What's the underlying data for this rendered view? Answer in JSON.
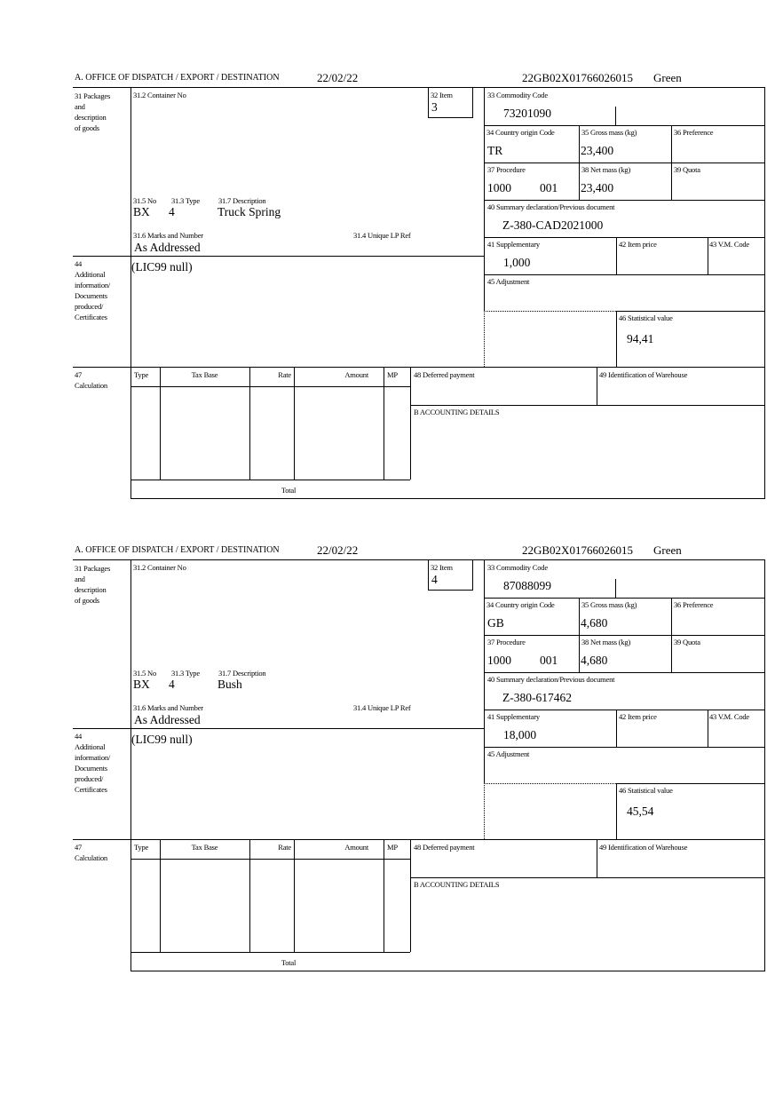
{
  "labels": {
    "office": "A.  OFFICE OF DISPATCH / EXPORT / DESTINATION",
    "box31": [
      "31 Packages",
      "and",
      "description",
      "of goods"
    ],
    "container_no": "31.2 Container No",
    "item": "32 Item",
    "commodity_code": "33 Commodity Code",
    "country_origin": "34 Country origin Code",
    "gross_mass": "35 Gross mass (kg)",
    "preference": "36 Preference",
    "procedure": "37 Procedure",
    "net_mass": "38 Net mass (kg)",
    "quota": "39 Quota",
    "summary_declaration": "40 Summary declaration/Previous document",
    "supplementary": "41 Supplementary",
    "item_price": "42 Item price",
    "vm_code": "43 V.M. Code",
    "adjustment": "45 Adjustment",
    "statistical_value": "46 Statistical value",
    "no": "31.5 No",
    "type": "31.3 Type",
    "description": "31.7 Description",
    "marks": "31.6 Marks and Number",
    "unique_lp_ref": "31.4 Unique LP Ref",
    "box44": [
      "44",
      "Additional",
      "information/",
      "Documents",
      "produced/",
      "Certificates"
    ],
    "box47": [
      "47",
      "Calculation"
    ],
    "calc_headers": [
      "Type",
      "Tax Base",
      "Rate",
      "Amount",
      "MP"
    ],
    "deferred_payment": "48 Deferred payment",
    "warehouse": "49 Identification of Warehouse",
    "accounting": "B ACCOUNTING DETAILS",
    "total": "Total"
  },
  "items": [
    {
      "date": "22/02/22",
      "reference": "22GB02X01766026015",
      "route": "Green",
      "item_no": "3",
      "commodity_code": "73201090",
      "country_origin": "TR",
      "gross_mass": "23,400",
      "procedure": "1000",
      "procedure_suffix": "001",
      "net_mass": "23,400",
      "summary_declaration": "Z-380-CAD2021000",
      "supplementary": "1,000",
      "statistical_value": "94,41",
      "package_no": "BX",
      "package_type": "4",
      "description": "Truck Spring",
      "marks": "As Addressed",
      "additional_info": "(LIC99 null)"
    },
    {
      "date": "22/02/22",
      "reference": "22GB02X01766026015",
      "route": "Green",
      "item_no": "4",
      "commodity_code": "87088099",
      "country_origin": "GB",
      "gross_mass": "4,680",
      "procedure": "1000",
      "procedure_suffix": "001",
      "net_mass": "4,680",
      "summary_declaration": "Z-380-617462",
      "supplementary": "18,000",
      "statistical_value": "45,54",
      "package_no": "BX",
      "package_type": "4",
      "description": "Bush",
      "marks": "As Addressed",
      "additional_info": "(LIC99 null)"
    }
  ]
}
